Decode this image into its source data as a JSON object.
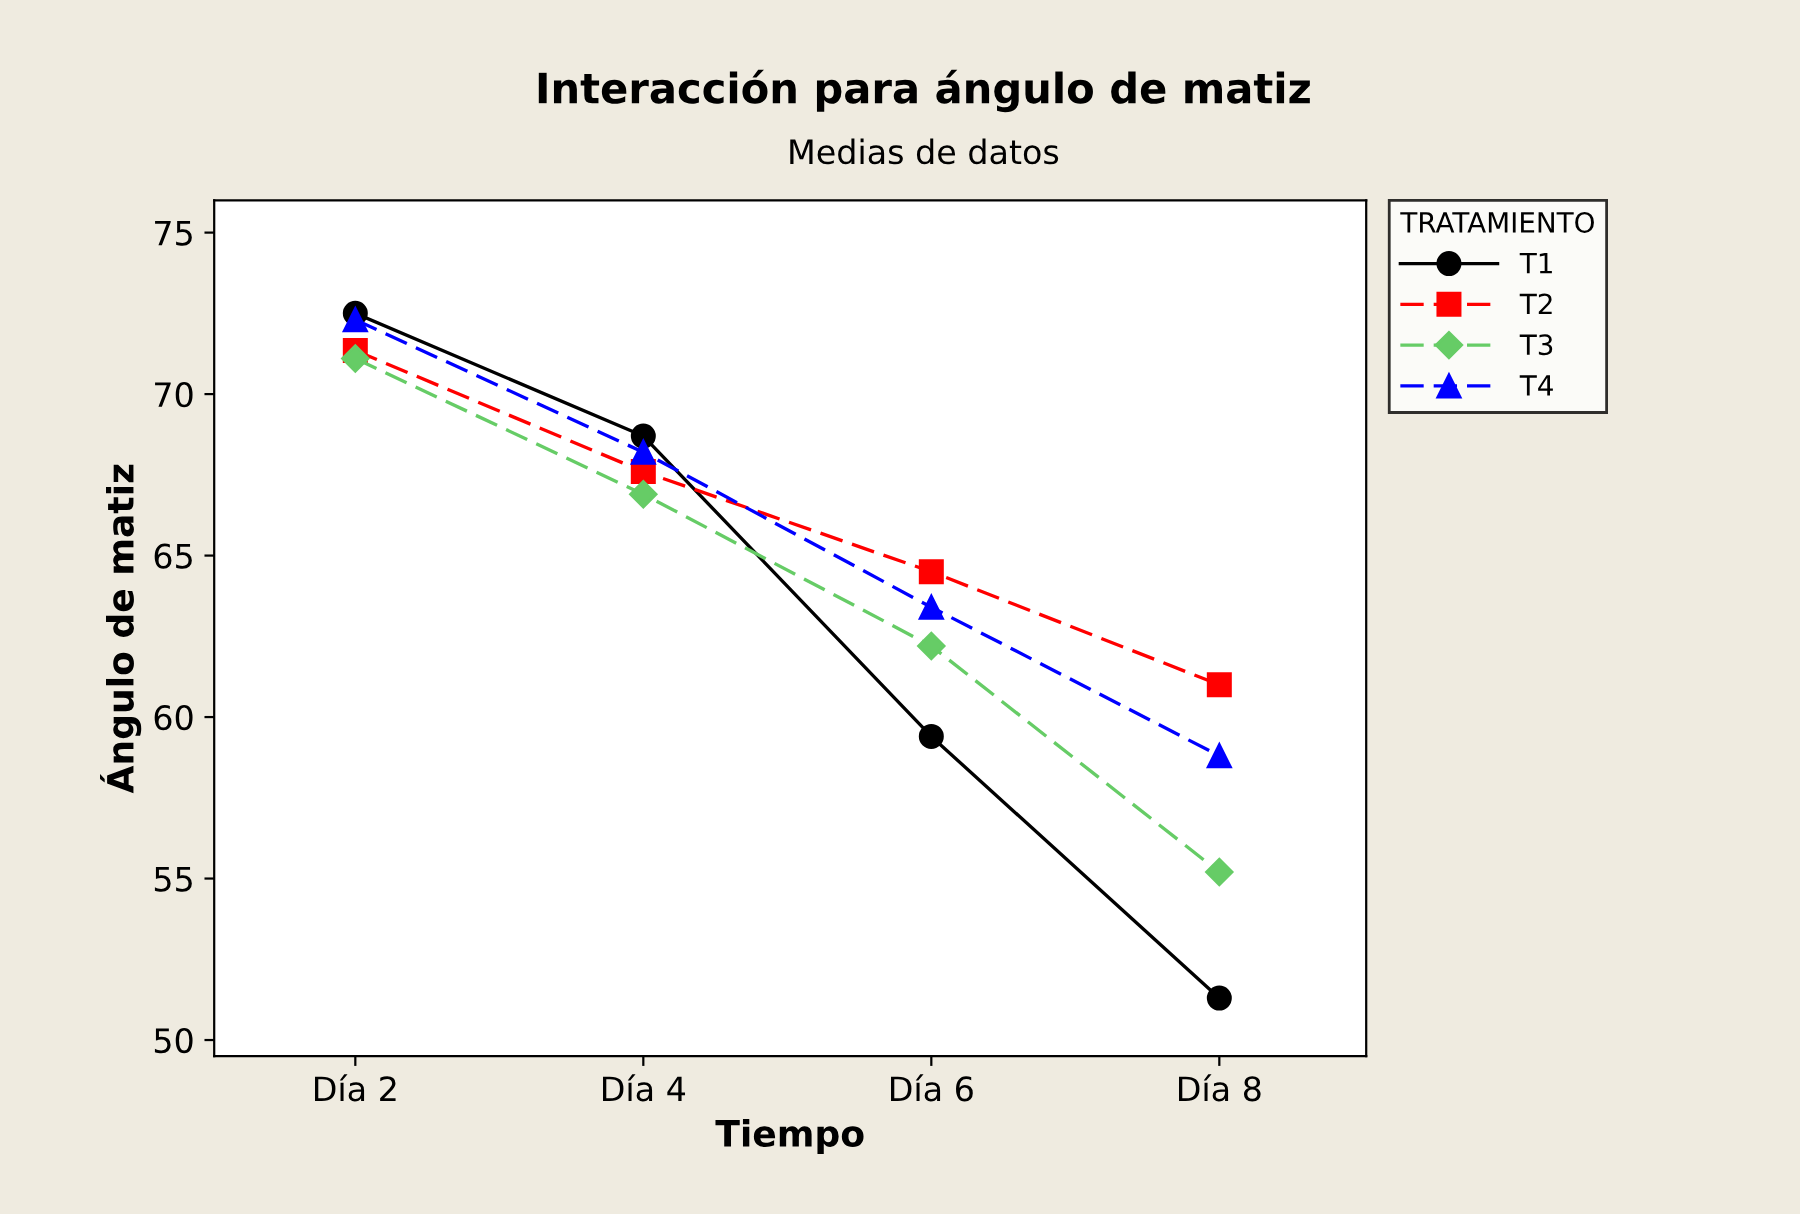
{
  "chart_data": {
    "type": "line",
    "title": "Interacción para ángulo de matiz",
    "subtitle": "Medias de datos",
    "xlabel": "Tiempo",
    "ylabel": "Ángulo de matiz",
    "legend_title": "TRATAMIENTO",
    "legend": "right",
    "grid": false,
    "categories": [
      "Día 2",
      "Día 4",
      "Día 6",
      "Día 8"
    ],
    "ylim": [
      49.5,
      76
    ],
    "yticks": [
      50,
      55,
      60,
      65,
      70,
      75
    ],
    "series": [
      {
        "name": "T1",
        "color": "#000000",
        "values": [
          72.5,
          68.7,
          59.4,
          51.3
        ],
        "marker": "circle",
        "line_style": "solid"
      },
      {
        "name": "T2",
        "color": "#ff0000",
        "values": [
          71.35,
          67.6,
          64.5,
          61.0
        ],
        "marker": "square",
        "line_style": "dashed"
      },
      {
        "name": "T3",
        "color": "#66cc66",
        "values": [
          71.1,
          66.9,
          62.2,
          55.2
        ],
        "marker": "diamond",
        "line_style": "dashed"
      },
      {
        "name": "T4",
        "color": "#0000ff",
        "values": [
          72.3,
          68.2,
          63.4,
          58.8
        ],
        "marker": "triangle",
        "line_style": "dashed"
      }
    ]
  }
}
